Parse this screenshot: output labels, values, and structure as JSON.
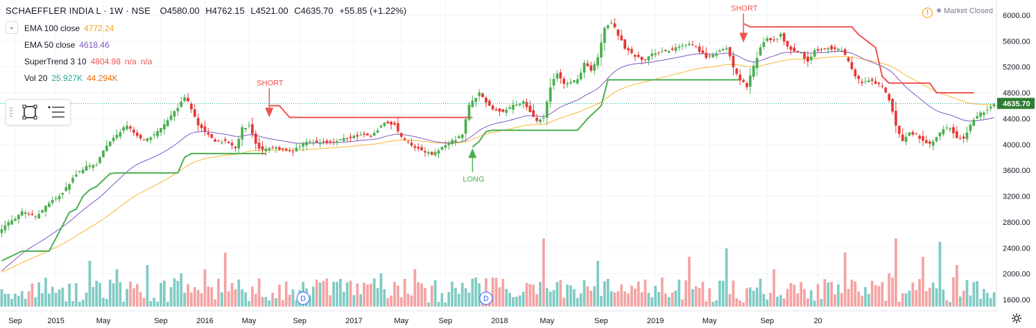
{
  "header": {
    "symbol": "SCHAEFFLER INDIA L · 1W · NSE",
    "open": "O4580.00",
    "high": "H4762.15",
    "low": "L4521.00",
    "close": "C4635.70",
    "change": "+55.85 (+1.22%)"
  },
  "indicators": [
    {
      "name": "EMA 100 close",
      "value": "4772.24",
      "value2": "",
      "value3": "",
      "color": "#f0a427"
    },
    {
      "name": "EMA 50 close",
      "value": "4618.46",
      "value2": "",
      "value3": "",
      "color": "#7e57c2"
    },
    {
      "name": "SuperTrend 3 10",
      "value": "4804.98",
      "value2": "n/a",
      "value3": "n/a",
      "color": "#ef5350"
    },
    {
      "name": "Vol 20",
      "value": "25.927K",
      "value2": "44.294K",
      "value3": "",
      "color": "#26a69a",
      "color2": "#ef6c00"
    }
  ],
  "market_status": "Market Closed",
  "collapse_icon": "chevron-down-icon",
  "colors": {
    "up": "#4caf50",
    "down": "#e53935",
    "ema100": "#f7b731",
    "ema50": "#7e57c2",
    "supertrend_up": "#4caf50",
    "supertrend_down": "#ef5350",
    "vol_up": "#80cbc4",
    "vol_down": "#f4a3a3",
    "last_price_bg": "#2e7d32"
  },
  "chart_data": {
    "type": "candlestick",
    "title": "SCHAEFFLER INDIA L · 1W · NSE",
    "y_axis": {
      "ticks": [
        "6000.00",
        "5600.00",
        "5200.00",
        "4800.00",
        "4400.00",
        "4000.00",
        "3600.00",
        "3200.00",
        "2800.00",
        "2400.00",
        "2000.00",
        "1600.00"
      ],
      "ylim": [
        1500,
        6150
      ]
    },
    "x_axis": {
      "ticks": [
        "Sep",
        "2015",
        "May",
        "Sep",
        "2016",
        "May",
        "Sep",
        "2017",
        "May",
        "Sep",
        "2018",
        "May",
        "Sep",
        "2019",
        "May",
        "Sep",
        "20"
      ]
    },
    "last_price": "4635.70",
    "last_price_value": 4635.7,
    "price_anchors": [
      [
        0,
        2700
      ],
      [
        6,
        2950
      ],
      [
        10,
        2880
      ],
      [
        14,
        3100
      ],
      [
        18,
        3250
      ],
      [
        22,
        3550
      ],
      [
        25,
        3650
      ],
      [
        28,
        3700
      ],
      [
        31,
        4000
      ],
      [
        34,
        4150
      ],
      [
        37,
        4300
      ],
      [
        39,
        4200
      ],
      [
        42,
        4050
      ],
      [
        45,
        4150
      ],
      [
        48,
        4300
      ],
      [
        51,
        4500
      ],
      [
        54,
        4750
      ],
      [
        56,
        4550
      ],
      [
        58,
        4300
      ],
      [
        61,
        4150
      ],
      [
        63,
        4050
      ],
      [
        66,
        4050
      ],
      [
        69,
        3950
      ],
      [
        71,
        4250
      ],
      [
        73,
        4300
      ],
      [
        75,
        4000
      ],
      [
        77,
        3900
      ],
      [
        80,
        3950
      ],
      [
        83,
        3920
      ],
      [
        86,
        3900
      ],
      [
        90,
        4050
      ],
      [
        94,
        4030
      ],
      [
        98,
        4050
      ],
      [
        102,
        4100
      ],
      [
        106,
        4150
      ],
      [
        109,
        4120
      ],
      [
        113,
        4350
      ],
      [
        116,
        4300
      ],
      [
        118,
        4100
      ],
      [
        121,
        4000
      ],
      [
        124,
        3900
      ],
      [
        127,
        3850
      ],
      [
        130,
        3950
      ],
      [
        133,
        4050
      ],
      [
        136,
        4150
      ],
      [
        138,
        4600
      ],
      [
        141,
        4800
      ],
      [
        143,
        4650
      ],
      [
        145,
        4550
      ],
      [
        148,
        4500
      ],
      [
        151,
        4600
      ],
      [
        154,
        4650
      ],
      [
        156,
        4500
      ],
      [
        158,
        4350
      ],
      [
        160,
        4400
      ],
      [
        162,
        4900
      ],
      [
        164,
        5100
      ],
      [
        166,
        4950
      ],
      [
        168,
        4950
      ],
      [
        170,
        5000
      ],
      [
        172,
        5250
      ],
      [
        174,
        5150
      ],
      [
        176,
        5350
      ],
      [
        178,
        5800
      ],
      [
        180,
        5900
      ],
      [
        182,
        5700
      ],
      [
        184,
        5500
      ],
      [
        186,
        5400
      ],
      [
        188,
        5350
      ],
      [
        190,
        5300
      ],
      [
        192,
        5400
      ],
      [
        196,
        5450
      ],
      [
        200,
        5500
      ],
      [
        204,
        5550
      ],
      [
        208,
        5350
      ],
      [
        212,
        5450
      ],
      [
        214,
        5500
      ],
      [
        216,
        5200
      ],
      [
        218,
        5000
      ],
      [
        220,
        4900
      ],
      [
        222,
        5200
      ],
      [
        224,
        5500
      ],
      [
        226,
        5650
      ],
      [
        228,
        5600
      ],
      [
        230,
        5700
      ],
      [
        232,
        5500
      ],
      [
        234,
        5450
      ],
      [
        236,
        5400
      ],
      [
        238,
        5300
      ],
      [
        240,
        5450
      ],
      [
        244,
        5500
      ],
      [
        248,
        5450
      ],
      [
        250,
        5300
      ],
      [
        252,
        5050
      ],
      [
        254,
        4950
      ],
      [
        256,
        5000
      ],
      [
        258,
        4950
      ],
      [
        260,
        4900
      ],
      [
        262,
        4700
      ],
      [
        264,
        4300
      ],
      [
        266,
        4050
      ],
      [
        268,
        4200
      ],
      [
        270,
        4150
      ],
      [
        272,
        4050
      ],
      [
        274,
        4000
      ],
      [
        276,
        4100
      ],
      [
        278,
        4250
      ],
      [
        280,
        4250
      ],
      [
        282,
        4100
      ],
      [
        284,
        4100
      ],
      [
        286,
        4300
      ],
      [
        288,
        4450
      ],
      [
        290,
        4500
      ],
      [
        292,
        4580
      ],
      [
        293,
        4635.7
      ]
    ],
    "supertrend_segments": [
      {
        "dir": "up",
        "points": [
          [
            0,
            2200
          ],
          [
            6,
            2350
          ],
          [
            14,
            2350
          ],
          [
            16,
            2550
          ],
          [
            18,
            2750
          ],
          [
            20,
            2950
          ],
          [
            22,
            3000
          ],
          [
            24,
            3200
          ],
          [
            26,
            3300
          ],
          [
            28,
            3350
          ],
          [
            30,
            3450
          ],
          [
            32,
            3550
          ],
          [
            34,
            3560
          ],
          [
            52,
            3560
          ],
          [
            54,
            3800
          ],
          [
            56,
            3860
          ],
          [
            78,
            3860
          ]
        ]
      },
      {
        "dir": "down",
        "points": [
          [
            79,
            4600
          ],
          [
            82,
            4600
          ],
          [
            85,
            4420
          ],
          [
            139,
            4420
          ]
        ]
      },
      {
        "dir": "up",
        "points": [
          [
            139,
            3960
          ],
          [
            141,
            4050
          ],
          [
            143,
            4200
          ],
          [
            145,
            4220
          ],
          [
            170,
            4220
          ],
          [
            173,
            4400
          ],
          [
            175,
            4500
          ],
          [
            177,
            4600
          ],
          [
            179,
            5000
          ],
          [
            218,
            5000
          ]
        ]
      },
      {
        "dir": "down",
        "points": [
          [
            219,
            5870
          ],
          [
            221,
            5820
          ],
          [
            251,
            5820
          ],
          [
            253,
            5700
          ],
          [
            258,
            5500
          ],
          [
            260,
            5050
          ],
          [
            262,
            4950
          ],
          [
            274,
            4950
          ],
          [
            276,
            4800
          ],
          [
            287,
            4800
          ]
        ]
      }
    ],
    "signals": [
      {
        "label": "SHORT",
        "bar": 79,
        "dir": "down",
        "price": 4440
      },
      {
        "label": "LONG",
        "bar": 139,
        "dir": "up",
        "price": 3920
      },
      {
        "label": "SHORT",
        "bar": 219,
        "dir": "down",
        "price": 5600
      }
    ],
    "dividend_markers": [
      {
        "label": "D",
        "bar": 89
      },
      {
        "label": "D",
        "bar": 143
      }
    ],
    "volume_spikes": [
      [
        26,
        0.55
      ],
      [
        34,
        0.45
      ],
      [
        43,
        0.5
      ],
      [
        53,
        0.4
      ],
      [
        60,
        0.45
      ],
      [
        66,
        0.65
      ],
      [
        84,
        0.3
      ],
      [
        112,
        0.4
      ],
      [
        122,
        0.45
      ],
      [
        133,
        0.3
      ],
      [
        140,
        0.35
      ],
      [
        160,
        0.82
      ],
      [
        176,
        0.55
      ],
      [
        195,
        0.35
      ],
      [
        203,
        0.6
      ],
      [
        214,
        0.7
      ],
      [
        228,
        0.45
      ],
      [
        249,
        0.65
      ],
      [
        262,
        0.4
      ],
      [
        264,
        0.82
      ],
      [
        272,
        0.6
      ],
      [
        277,
        0.78
      ],
      [
        282,
        0.5
      ]
    ]
  }
}
